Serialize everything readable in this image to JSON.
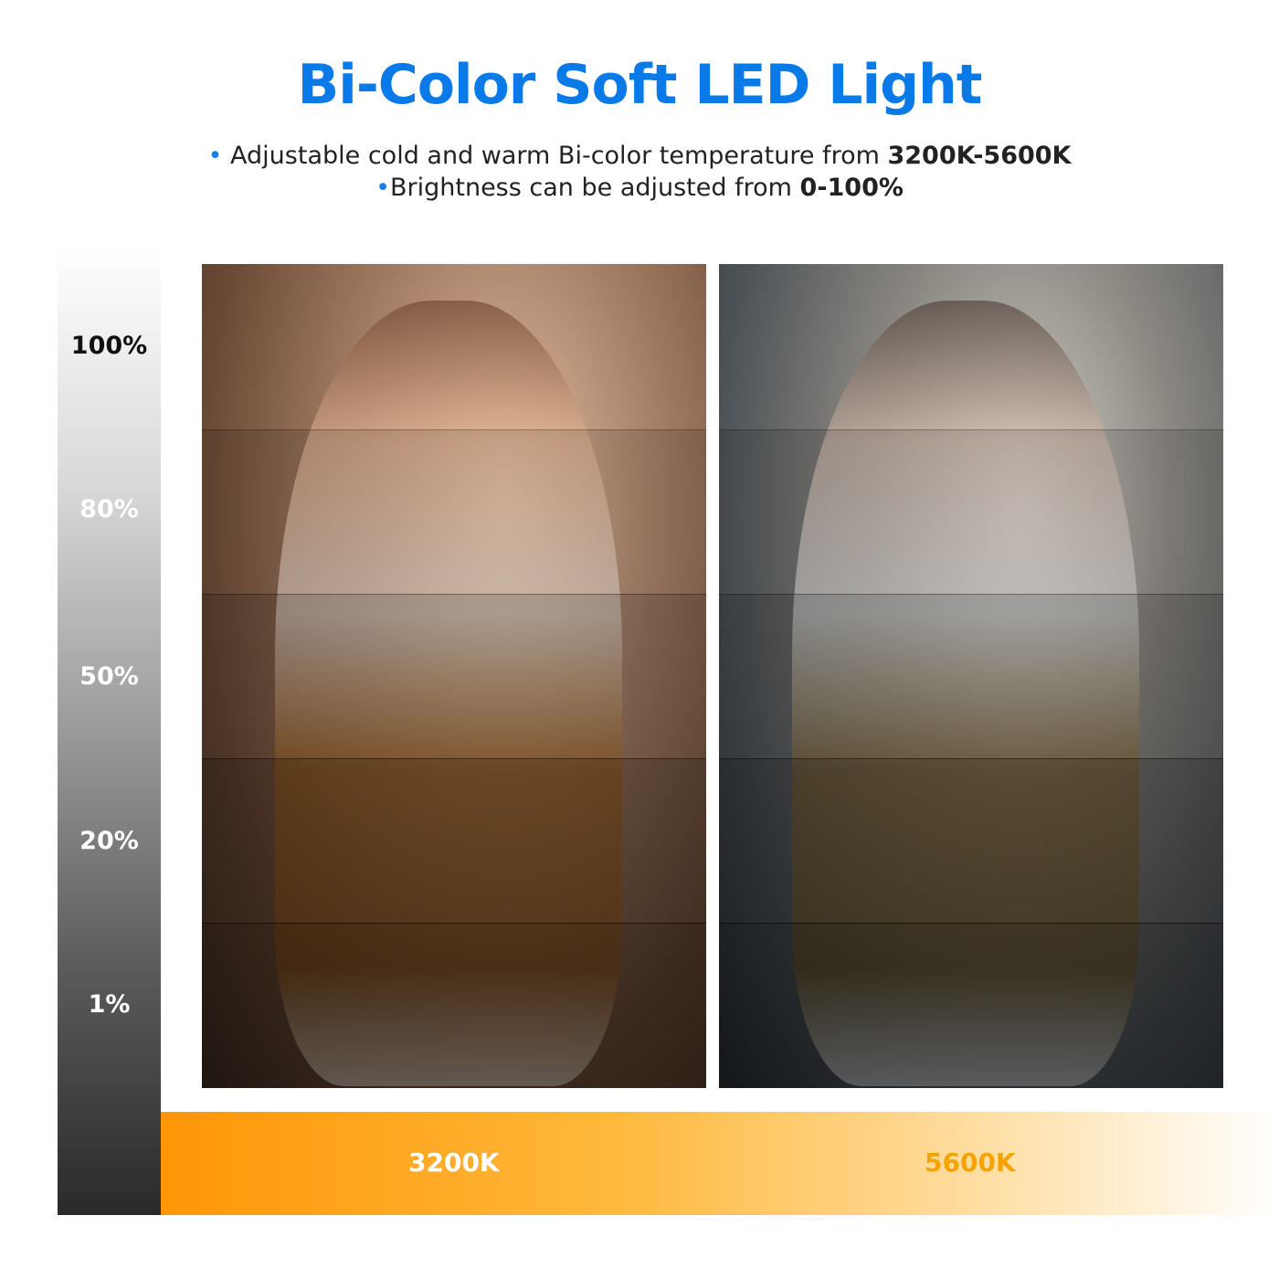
{
  "title": "Bi-Color Soft LED Light",
  "bullets": [
    {
      "text": "Adjustable cold and warm Bi-color temperature from ",
      "bold": "3200K-5600K"
    },
    {
      "text": "Brightness can be adjusted from ",
      "bold": "0-100%"
    }
  ],
  "brightness_levels": [
    "100%",
    "80%",
    "50%",
    "20%",
    "1%"
  ],
  "temperatures": [
    "3200K",
    "5600K"
  ],
  "colors": {
    "title": "#0a7ae8",
    "warm": "#ff9608",
    "temp_5600_label": "#f5a300"
  }
}
